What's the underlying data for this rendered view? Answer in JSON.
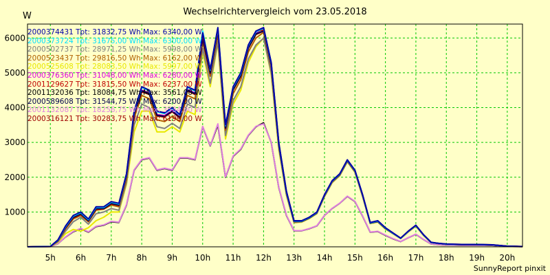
{
  "chart_data": {
    "type": "line",
    "title": "Wechselrichtervergleich vom 23.05.2018",
    "ylabel": "W",
    "footer": "SunnyReport pinxit",
    "xlim": [
      4.25,
      20.5
    ],
    "ylim": [
      0,
      6400
    ],
    "x_ticks": [
      5,
      6,
      7,
      8,
      9,
      10,
      11,
      12,
      13,
      14,
      15,
      16,
      17,
      18,
      19,
      20
    ],
    "x_tick_labels": [
      "5h",
      "6h",
      "7h",
      "8h",
      "9h",
      "10h",
      "11h",
      "12h",
      "13h",
      "14h",
      "15h",
      "16h",
      "17h",
      "18h",
      "19h",
      "20h"
    ],
    "y_ticks": [
      1000,
      2000,
      3000,
      4000,
      5000,
      6000
    ],
    "grid": true,
    "legend_position": "top-left",
    "x": [
      4.25,
      5.0,
      5.25,
      5.5,
      5.75,
      6.0,
      6.25,
      6.5,
      6.75,
      7.0,
      7.25,
      7.5,
      7.75,
      8.0,
      8.25,
      8.5,
      8.75,
      9.0,
      9.25,
      9.5,
      9.75,
      10.0,
      10.25,
      10.5,
      10.75,
      11.0,
      11.25,
      11.5,
      11.75,
      12.0,
      12.25,
      12.5,
      12.75,
      13.0,
      13.25,
      13.5,
      13.75,
      14.0,
      14.25,
      14.5,
      14.75,
      15.0,
      15.25,
      15.5,
      15.75,
      16.0,
      16.25,
      16.5,
      16.75,
      17.0,
      17.25,
      17.5,
      17.75,
      18.0,
      18.5,
      19.0,
      19.5,
      20.0,
      20.5
    ],
    "series": [
      {
        "name": "2000374431 Tpt: 31832,75 Wh Max: 6340,00 W",
        "color": "#0000a8",
        "values": [
          0,
          10,
          200,
          600,
          900,
          1000,
          800,
          1150,
          1150,
          1300,
          1250,
          2100,
          3900,
          4600,
          4500,
          3900,
          3850,
          4000,
          3800,
          4600,
          4500,
          6150,
          5100,
          6300,
          3500,
          4600,
          5000,
          5800,
          6200,
          6300,
          5300,
          3000,
          1600,
          750,
          750,
          850,
          1000,
          1500,
          1900,
          2100,
          2500,
          2200,
          1500,
          700,
          750,
          550,
          400,
          250,
          450,
          620,
          350,
          130,
          100,
          80,
          70,
          70,
          60,
          20,
          10
        ]
      },
      {
        "name": "2000373724 Tpt: 31675,00 Wh Max: 6300,00 W",
        "color": "#00e0ff",
        "values": [
          0,
          10,
          190,
          580,
          880,
          980,
          780,
          1130,
          1130,
          1280,
          1230,
          2080,
          3880,
          4580,
          4480,
          3880,
          3830,
          3980,
          3780,
          4580,
          4480,
          6200,
          5080,
          6280,
          3480,
          4580,
          4980,
          5780,
          6180,
          6280,
          5280,
          2980,
          1580,
          740,
          740,
          840,
          990,
          1490,
          1890,
          2090,
          2490,
          2190,
          1490,
          690,
          740,
          540,
          390,
          245,
          445,
          615,
          345,
          125,
          98,
          78,
          68,
          68,
          58,
          18,
          8
        ]
      },
      {
        "name": "2000502737 Tpt: 28971,25 Wh Max: 5998,00 W",
        "color": "#808080",
        "values": [
          0,
          8,
          150,
          450,
          720,
          850,
          650,
          950,
          1000,
          1100,
          1050,
          1850,
          3500,
          4100,
          4000,
          3450,
          3400,
          3550,
          3400,
          4100,
          4000,
          5700,
          4700,
          5900,
          3200,
          4200,
          4600,
          5400,
          5800,
          5998,
          5000,
          2850,
          1500,
          700,
          720,
          820,
          960,
          1450,
          1850,
          2050,
          2450,
          2150,
          1450,
          680,
          720,
          520,
          380,
          240,
          430,
          600,
          330,
          120,
          95,
          75,
          65,
          65,
          55,
          18,
          8
        ]
      },
      {
        "name": "2000523437 Tpt: 29816,50 Wh Max: 6162,00 W",
        "color": "#b06000",
        "values": [
          0,
          9,
          170,
          520,
          800,
          900,
          720,
          1050,
          1080,
          1200,
          1150,
          1950,
          3700,
          4350,
          4250,
          3650,
          3600,
          3750,
          3600,
          4350,
          4250,
          5900,
          4900,
          6100,
          3350,
          4400,
          4800,
          5600,
          6000,
          6162,
          5150,
          2920,
          1550,
          720,
          730,
          830,
          980,
          1470,
          1870,
          2070,
          2470,
          2170,
          1470,
          690,
          730,
          530,
          385,
          242,
          440,
          610,
          340,
          122,
          96,
          76,
          66,
          66,
          56,
          18,
          8
        ]
      },
      {
        "name": "2000525608 Tpt: 28083,50 Wh Max: 5997,00 W",
        "color": "#e8e800",
        "values": [
          0,
          7,
          130,
          380,
          500,
          450,
          550,
          750,
          850,
          1000,
          1000,
          1800,
          3300,
          3900,
          3900,
          3300,
          3300,
          3450,
          3300,
          3900,
          3800,
          5600,
          4600,
          5850,
          3100,
          4100,
          4500,
          5300,
          5750,
          5997,
          4950,
          2800,
          1480,
          690,
          710,
          810,
          950,
          1440,
          1840,
          2040,
          2440,
          2140,
          1440,
          670,
          710,
          510,
          375,
          238,
          425,
          595,
          325,
          118,
          94,
          74,
          64,
          64,
          54,
          17,
          8
        ]
      },
      {
        "name": "2000376360 Tpt: 31048,00 Wh Max: 6280,00 W",
        "color": "#e000e0",
        "values": [
          0,
          9,
          185,
          570,
          860,
          960,
          760,
          1110,
          1110,
          1260,
          1210,
          2060,
          3850,
          4500,
          4420,
          3800,
          3770,
          3920,
          3740,
          4520,
          4420,
          6050,
          5040,
          6250,
          3450,
          4550,
          4950,
          5750,
          6150,
          6280,
          5260,
          2960,
          1570,
          735,
          735,
          835,
          985,
          1485,
          1885,
          2085,
          2485,
          2185,
          1485,
          685,
          735,
          535,
          388,
          244,
          443,
          612,
          343,
          124,
          97,
          77,
          67,
          67,
          57,
          18,
          8
        ]
      },
      {
        "name": "2001129627 Tpt: 31815,50 Wh Max: 6237,00 W",
        "color": "#c00000",
        "values": [
          0,
          10,
          195,
          590,
          890,
          990,
          790,
          1140,
          1140,
          1290,
          1240,
          2090,
          3890,
          4590,
          4490,
          3890,
          3840,
          3990,
          3790,
          4590,
          4490,
          6100,
          5090,
          6237,
          3490,
          4590,
          4990,
          5790,
          6190,
          6237,
          5290,
          2990,
          1590,
          745,
          745,
          845,
          995,
          1495,
          1895,
          2095,
          2495,
          2195,
          1495,
          695,
          745,
          545,
          395,
          248,
          448,
          618,
          348,
          128,
          99,
          79,
          69,
          69,
          59,
          19,
          9
        ]
      },
      {
        "name": "2001132036 Tpt: 18084,75 Wh Max: 3561,00 W",
        "color": "#000000",
        "values": [
          0,
          5,
          90,
          280,
          430,
          520,
          420,
          580,
          620,
          720,
          700,
          1200,
          2200,
          2500,
          2550,
          2200,
          2250,
          2200,
          2550,
          2550,
          2500,
          3450,
          2900,
          3500,
          2000,
          2600,
          2800,
          3200,
          3450,
          3561,
          3000,
          1700,
          900,
          460,
          460,
          520,
          600,
          900,
          1100,
          1250,
          1450,
          1300,
          880,
          420,
          440,
          330,
          230,
          150,
          260,
          360,
          210,
          80,
          60,
          50,
          45,
          45,
          40,
          12,
          5
        ]
      },
      {
        "name": "2000589608 Tpt: 31544,75 Wh Max: 6200,00 W",
        "color": "#000050",
        "values": [
          0,
          9,
          180,
          560,
          850,
          950,
          750,
          1100,
          1100,
          1250,
          1200,
          2050,
          3820,
          4480,
          4400,
          3780,
          3750,
          3900,
          3720,
          4500,
          4400,
          6000,
          5000,
          6200,
          3420,
          4520,
          4920,
          5720,
          6120,
          6200,
          5240,
          2940,
          1560,
          730,
          730,
          830,
          980,
          1480,
          1880,
          2080,
          2480,
          2180,
          1480,
          680,
          730,
          530,
          386,
          243,
          442,
          611,
          342,
          123,
          96,
          76,
          66,
          66,
          56,
          18,
          8
        ]
      },
      {
        "name": "2001132087 Tpt: 18256,75 Wh Max: 3534,00 W",
        "color": "#e080e0",
        "values": [
          0,
          5,
          92,
          285,
          440,
          530,
          430,
          590,
          630,
          730,
          710,
          1210,
          2210,
          2510,
          2560,
          2210,
          2260,
          2210,
          2560,
          2560,
          2510,
          3460,
          2910,
          3534,
          2010,
          2610,
          2810,
          3210,
          3460,
          3534,
          3010,
          1710,
          910,
          465,
          465,
          525,
          605,
          905,
          1105,
          1255,
          1455,
          1305,
          885,
          425,
          445,
          335,
          235,
          152,
          262,
          362,
          212,
          82,
          62,
          52,
          46,
          46,
          41,
          12,
          5
        ]
      },
      {
        "name": "2000316121 Tpt: 30283,75 Wh Max: 6199,00 W",
        "color": "#a00000",
        "values": [
          0,
          9,
          175,
          540,
          830,
          930,
          740,
          1080,
          1090,
          1230,
          1190,
          2030,
          3800,
          4450,
          4380,
          3760,
          3730,
          3880,
          3700,
          4480,
          4380,
          5980,
          4980,
          6199,
          3400,
          4500,
          4900,
          5700,
          6100,
          6199,
          5220,
          2930,
          1555,
          728,
          728,
          828,
          978,
          1478,
          1878,
          2078,
          2478,
          2178,
          1478,
          678,
          728,
          528,
          384,
          241,
          441,
          609,
          341,
          122,
          96,
          76,
          66,
          66,
          56,
          18,
          8
        ]
      }
    ]
  }
}
